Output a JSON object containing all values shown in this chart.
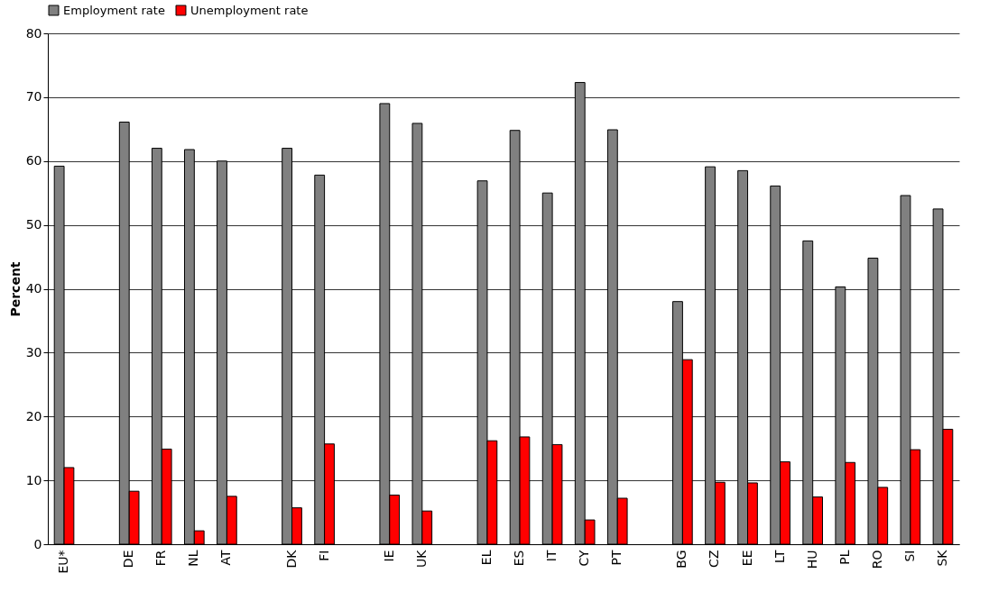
{
  "chart_data": {
    "type": "bar",
    "ylabel": "Percent",
    "categories": [
      "EU*",
      null,
      "DE",
      "FR",
      "NL",
      "AT",
      null,
      "DK",
      "FI",
      null,
      "IE",
      "UK",
      null,
      "EL",
      "ES",
      "IT",
      "CY",
      "PT",
      null,
      "BG",
      "CZ",
      "EE",
      "LT",
      "HU",
      "PL",
      "RO",
      "SI",
      "SK"
    ],
    "series": [
      {
        "name": "Employment rate",
        "color": "#808080",
        "values": [
          59.2,
          null,
          66.1,
          62,
          61.8,
          60,
          null,
          62,
          57.8,
          null,
          69,
          65.9,
          null,
          56.9,
          64.8,
          55,
          72.3,
          64.9,
          null,
          38,
          59.1,
          58.5,
          56.1,
          47.5,
          40.3,
          44.8,
          54.6,
          52.5
        ]
      },
      {
        "name": "Unemployment rate",
        "color": "#ff0000",
        "values": [
          12,
          null,
          8.3,
          14.9,
          2.1,
          7.5,
          null,
          5.7,
          15.7,
          null,
          7.7,
          5.2,
          null,
          16.2,
          16.8,
          15.6,
          3.8,
          7.2,
          null,
          28.9,
          9.7,
          9.6,
          12.9,
          7.4,
          12.8,
          8.9,
          14.8,
          18
        ]
      }
    ],
    "ylim": [
      0,
      80
    ],
    "yticks": [
      0,
      10,
      20,
      30,
      40,
      50,
      60,
      70,
      80
    ],
    "grid": "y",
    "legend": "top"
  }
}
